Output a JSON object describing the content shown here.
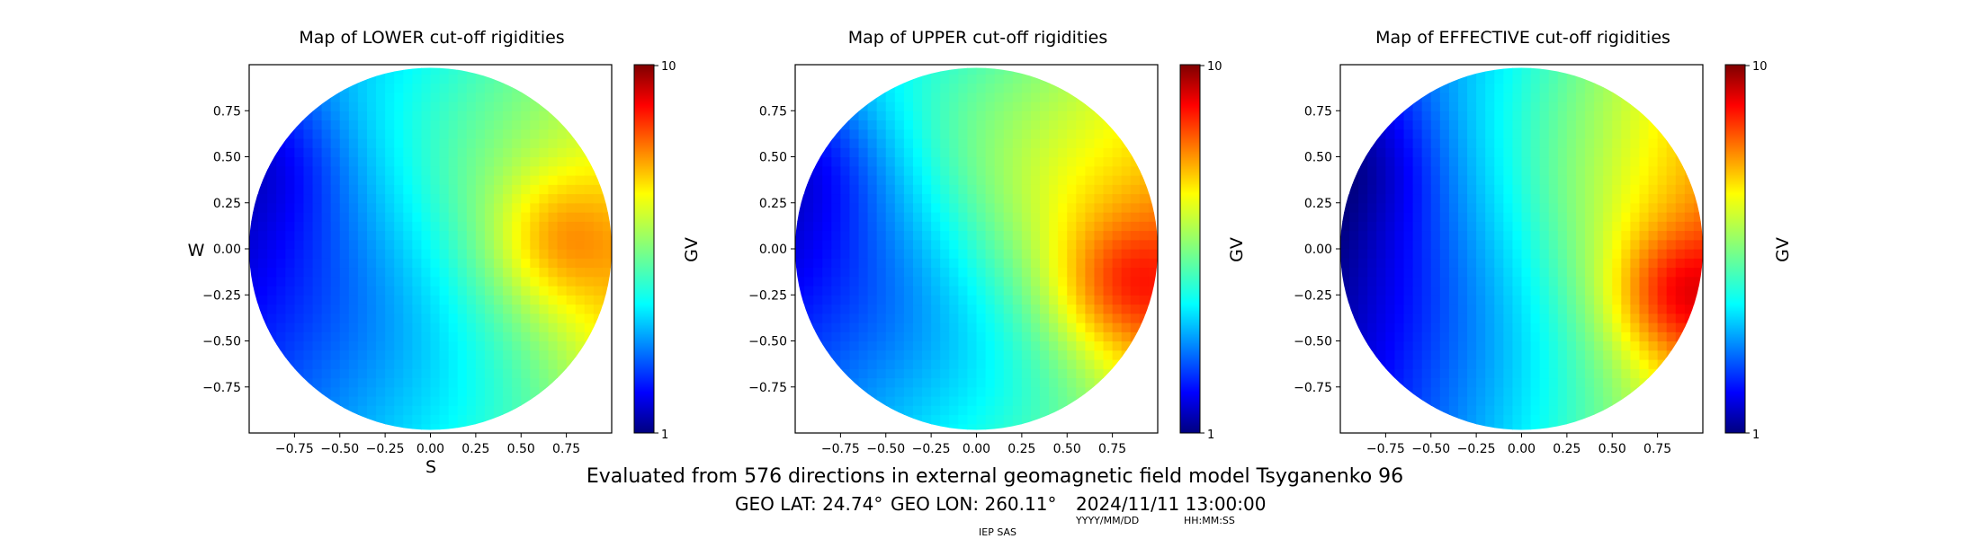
{
  "figure": {
    "footer_main": "Evaluated from 576 directions in external geomagnetic field model Tsyganenko 96",
    "geo_lat": "GEO LAT: 24.74°",
    "geo_lon": "GEO LON: 260.11°",
    "datetime": "2024/11/11 13:00:00",
    "date_format": "YYYY/MM/DD",
    "time_format": "HH:MM:SS",
    "credit": "IEP SAS"
  },
  "chart_data": [
    {
      "type": "heatmap",
      "title": "Map of LOWER cut-off rigidities",
      "xlabel": "S",
      "ylabel": "W",
      "xlim": [
        -1,
        1
      ],
      "ylim": [
        -1,
        1
      ],
      "xticks": [
        "−0.75",
        "−0.50",
        "−0.25",
        "0.00",
        "0.25",
        "0.50",
        "0.75"
      ],
      "yticks": [
        "0.75",
        "0.50",
        "0.25",
        "0.00",
        "−0.25",
        "−0.50",
        "−0.75"
      ],
      "colorbar": {
        "label": "GV",
        "min": 1,
        "max": 10,
        "ticks": [
          "10",
          "1"
        ]
      },
      "field": {
        "gradient_x": 2.2,
        "gradient_y": 0.1,
        "base": 4.4,
        "swirl": 0.35,
        "hot_x": 0.7,
        "hot_y": 0.05,
        "hot_amp": 1.2
      }
    },
    {
      "type": "heatmap",
      "title": "Map of UPPER cut-off rigidities",
      "xlabel": "",
      "ylabel": "",
      "xlim": [
        -1,
        1
      ],
      "ylim": [
        -1,
        1
      ],
      "xticks": [
        "−0.75",
        "−0.50",
        "−0.25",
        "0.00",
        "0.25",
        "0.50",
        "0.75"
      ],
      "yticks": [
        "0.75",
        "0.50",
        "0.25",
        "0.00",
        "−0.25",
        "−0.50",
        "−0.75"
      ],
      "colorbar": {
        "label": "GV",
        "min": 1,
        "max": 10,
        "ticks": [
          "10",
          "1"
        ]
      },
      "field": {
        "gradient_x": 2.4,
        "gradient_y": 0.2,
        "base": 4.8,
        "swirl": 0.5,
        "hot_x": 0.8,
        "hot_y": -0.2,
        "hot_amp": 1.4
      }
    },
    {
      "type": "heatmap",
      "title": "Map of EFFECTIVE cut-off rigidities",
      "xlabel": "",
      "ylabel": "",
      "xlim": [
        -1,
        1
      ],
      "ylim": [
        -1,
        1
      ],
      "xticks": [
        "−0.75",
        "−0.50",
        "−0.25",
        "0.00",
        "0.25",
        "0.50",
        "0.75"
      ],
      "yticks": [
        "0.75",
        "0.50",
        "0.25",
        "0.00",
        "−0.25",
        "−0.50",
        "−0.75"
      ],
      "colorbar": {
        "label": "GV",
        "min": 1,
        "max": 10,
        "ticks": [
          "10",
          "1"
        ]
      },
      "field": {
        "gradient_x": 3.0,
        "gradient_y": 0.15,
        "base": 4.4,
        "swirl": 0.25,
        "hot_x": 0.85,
        "hot_y": -0.25,
        "hot_amp": 1.8
      }
    }
  ]
}
